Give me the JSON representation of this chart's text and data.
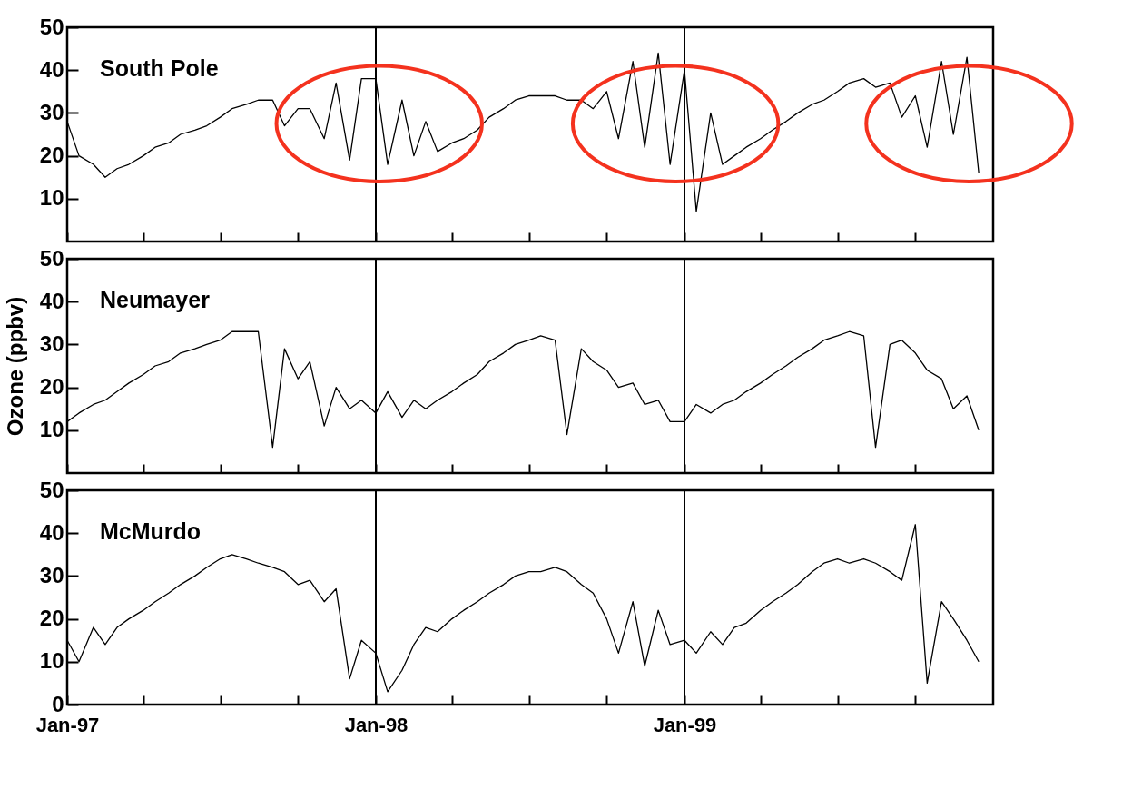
{
  "chart_data": [
    {
      "type": "line",
      "title": "South Pole",
      "xlim": [
        "1997-01-01",
        "2000-01-01"
      ],
      "ylim": [
        0,
        50
      ],
      "yticks": [
        10,
        20,
        30,
        40,
        50
      ],
      "tick_labels": "y",
      "xticks": [
        {
          "value": "1997-01-01",
          "label": null
        },
        {
          "value": "1997-04-01",
          "label": null
        },
        {
          "value": "1997-07-01",
          "label": null
        },
        {
          "value": "1997-10-01",
          "label": null
        },
        {
          "value": "1998-01-01",
          "label": null
        },
        {
          "value": "1998-04-01",
          "label": null
        },
        {
          "value": "1998-07-01",
          "label": null
        },
        {
          "value": "1998-10-01",
          "label": null
        },
        {
          "value": "1999-01-01",
          "label": null
        },
        {
          "value": "1999-04-01",
          "label": null
        },
        {
          "value": "1999-07-01",
          "label": null
        },
        {
          "value": "1999-10-01",
          "label": null
        }
      ],
      "ref_lines": [
        {
          "axis": "x",
          "value": "1998-01-01"
        },
        {
          "axis": "x",
          "value": "1999-01-01"
        }
      ],
      "x": [
        "1997-01-01",
        "1997-01-15",
        "1997-02-01",
        "1997-02-15",
        "1997-03-01",
        "1997-03-15",
        "1997-04-01",
        "1997-04-15",
        "1997-05-01",
        "1997-05-15",
        "1997-06-01",
        "1997-06-15",
        "1997-07-01",
        "1997-07-15",
        "1997-08-01",
        "1997-08-15",
        "1997-09-01",
        "1997-09-15",
        "1997-10-01",
        "1997-10-15",
        "1997-11-01",
        "1997-11-15",
        "1997-12-01",
        "1997-12-15",
        "1998-01-01",
        "1998-01-15",
        "1998-02-01",
        "1998-02-15",
        "1998-03-01",
        "1998-03-15",
        "1998-04-01",
        "1998-04-15",
        "1998-05-01",
        "1998-05-15",
        "1998-06-01",
        "1998-06-15",
        "1998-07-01",
        "1998-07-15",
        "1998-08-01",
        "1998-08-15",
        "1998-09-01",
        "1998-09-15",
        "1998-10-01",
        "1998-10-15",
        "1998-11-01",
        "1998-11-15",
        "1998-12-01",
        "1998-12-15",
        "1999-01-01",
        "1999-01-15",
        "1999-02-01",
        "1999-02-15",
        "1999-03-01",
        "1999-03-15",
        "1999-04-01",
        "1999-04-15",
        "1999-05-01",
        "1999-05-15",
        "1999-06-01",
        "1999-06-15",
        "1999-07-01",
        "1999-07-15",
        "1999-08-01",
        "1999-08-15",
        "1999-09-01",
        "1999-09-15",
        "1999-10-01",
        "1999-10-15",
        "1999-11-01",
        "1999-11-15",
        "1999-12-01",
        "1999-12-15"
      ],
      "series": [
        {
          "color": "#000000",
          "values": [
            28,
            20,
            18,
            15,
            17,
            18,
            20,
            22,
            23,
            25,
            26,
            27,
            29,
            31,
            32,
            33,
            33,
            27,
            31,
            31,
            24,
            37,
            19,
            38,
            38,
            18,
            33,
            20,
            28,
            21,
            23,
            24,
            26,
            29,
            31,
            33,
            34,
            34,
            34,
            33,
            33,
            31,
            35,
            24,
            42,
            22,
            44,
            18,
            40,
            7,
            30,
            18,
            20,
            22,
            24,
            26,
            28,
            30,
            32,
            33,
            35,
            37,
            38,
            36,
            37,
            29,
            34,
            22,
            42,
            25,
            43,
            16
          ]
        }
      ]
    },
    {
      "type": "line",
      "title": "Neumayer",
      "ylabel": "Ozone (ppbv)",
      "xlim": [
        "1997-01-01",
        "2000-01-01"
      ],
      "ylim": [
        0,
        50
      ],
      "yticks": [
        10,
        20,
        30,
        40,
        50
      ],
      "tick_labels": "y",
      "xticks": [
        {
          "value": "1997-01-01",
          "label": null
        },
        {
          "value": "1997-04-01",
          "label": null
        },
        {
          "value": "1997-07-01",
          "label": null
        },
        {
          "value": "1997-10-01",
          "label": null
        },
        {
          "value": "1998-01-01",
          "label": null
        },
        {
          "value": "1998-04-01",
          "label": null
        },
        {
          "value": "1998-07-01",
          "label": null
        },
        {
          "value": "1998-10-01",
          "label": null
        },
        {
          "value": "1999-01-01",
          "label": null
        },
        {
          "value": "1999-04-01",
          "label": null
        },
        {
          "value": "1999-07-01",
          "label": null
        },
        {
          "value": "1999-10-01",
          "label": null
        }
      ],
      "ref_lines": [
        {
          "axis": "x",
          "value": "1998-01-01"
        },
        {
          "axis": "x",
          "value": "1999-01-01"
        }
      ],
      "x": [
        "1997-01-01",
        "1997-01-15",
        "1997-02-01",
        "1997-02-15",
        "1997-03-01",
        "1997-03-15",
        "1997-04-01",
        "1997-04-15",
        "1997-05-01",
        "1997-05-15",
        "1997-06-01",
        "1997-06-15",
        "1997-07-01",
        "1997-07-15",
        "1997-08-01",
        "1997-08-15",
        "1997-09-01",
        "1997-09-15",
        "1997-10-01",
        "1997-10-15",
        "1997-11-01",
        "1997-11-15",
        "1997-12-01",
        "1997-12-15",
        "1998-01-01",
        "1998-01-15",
        "1998-02-01",
        "1998-02-15",
        "1998-03-01",
        "1998-03-15",
        "1998-04-01",
        "1998-04-15",
        "1998-05-01",
        "1998-05-15",
        "1998-06-01",
        "1998-06-15",
        "1998-07-01",
        "1998-07-15",
        "1998-08-01",
        "1998-08-15",
        "1998-09-01",
        "1998-09-15",
        "1998-10-01",
        "1998-10-15",
        "1998-11-01",
        "1998-11-15",
        "1998-12-01",
        "1998-12-15",
        "1999-01-01",
        "1999-01-15",
        "1999-02-01",
        "1999-02-15",
        "1999-03-01",
        "1999-03-15",
        "1999-04-01",
        "1999-04-15",
        "1999-05-01",
        "1999-05-15",
        "1999-06-01",
        "1999-06-15",
        "1999-07-01",
        "1999-07-15",
        "1999-08-01",
        "1999-08-15",
        "1999-09-01",
        "1999-09-15",
        "1999-10-01",
        "1999-10-15",
        "1999-11-01",
        "1999-11-15",
        "1999-12-01",
        "1999-12-15"
      ],
      "series": [
        {
          "color": "#000000",
          "values": [
            12,
            14,
            16,
            17,
            19,
            21,
            23,
            25,
            26,
            28,
            29,
            30,
            31,
            33,
            33,
            33,
            6,
            29,
            22,
            26,
            11,
            20,
            15,
            17,
            14,
            19,
            13,
            17,
            15,
            17,
            19,
            21,
            23,
            26,
            28,
            30,
            31,
            32,
            31,
            9,
            29,
            26,
            24,
            20,
            21,
            16,
            17,
            12,
            12,
            16,
            14,
            16,
            17,
            19,
            21,
            23,
            25,
            27,
            29,
            31,
            32,
            33,
            32,
            6,
            30,
            31,
            28,
            24,
            22,
            15,
            18,
            10
          ]
        }
      ]
    },
    {
      "type": "line",
      "title": "McMurdo",
      "xlim": [
        "1997-01-01",
        "2000-01-01"
      ],
      "ylim": [
        0,
        50
      ],
      "yticks": [
        0,
        10,
        20,
        30,
        40,
        50
      ],
      "xticks": [
        {
          "value": "1997-01-01",
          "label": "Jan-97"
        },
        {
          "value": "1997-04-01",
          "label": null
        },
        {
          "value": "1997-07-01",
          "label": null
        },
        {
          "value": "1997-10-01",
          "label": null
        },
        {
          "value": "1998-01-01",
          "label": "Jan-98"
        },
        {
          "value": "1998-04-01",
          "label": null
        },
        {
          "value": "1998-07-01",
          "label": null
        },
        {
          "value": "1998-10-01",
          "label": null
        },
        {
          "value": "1999-01-01",
          "label": "Jan-99"
        },
        {
          "value": "1999-04-01",
          "label": null
        },
        {
          "value": "1999-07-01",
          "label": null
        },
        {
          "value": "1999-10-01",
          "label": null
        }
      ],
      "ref_lines": [
        {
          "axis": "x",
          "value": "1998-01-01"
        },
        {
          "axis": "x",
          "value": "1999-01-01"
        }
      ],
      "x": [
        "1997-01-01",
        "1997-01-15",
        "1997-02-01",
        "1997-02-15",
        "1997-03-01",
        "1997-03-15",
        "1997-04-01",
        "1997-04-15",
        "1997-05-01",
        "1997-05-15",
        "1997-06-01",
        "1997-06-15",
        "1997-07-01",
        "1997-07-15",
        "1997-08-01",
        "1997-08-15",
        "1997-09-01",
        "1997-09-15",
        "1997-10-01",
        "1997-10-15",
        "1997-11-01",
        "1997-11-15",
        "1997-12-01",
        "1997-12-15",
        "1998-01-01",
        "1998-01-15",
        "1998-02-01",
        "1998-02-15",
        "1998-03-01",
        "1998-03-15",
        "1998-04-01",
        "1998-04-15",
        "1998-05-01",
        "1998-05-15",
        "1998-06-01",
        "1998-06-15",
        "1998-07-01",
        "1998-07-15",
        "1998-08-01",
        "1998-08-15",
        "1998-09-01",
        "1998-09-15",
        "1998-10-01",
        "1998-10-15",
        "1998-11-01",
        "1998-11-15",
        "1998-12-01",
        "1998-12-15",
        "1999-01-01",
        "1999-01-15",
        "1999-02-01",
        "1999-02-15",
        "1999-03-01",
        "1999-03-15",
        "1999-04-01",
        "1999-04-15",
        "1999-05-01",
        "1999-05-15",
        "1999-06-01",
        "1999-06-15",
        "1999-07-01",
        "1999-07-15",
        "1999-08-01",
        "1999-08-15",
        "1999-09-01",
        "1999-09-15",
        "1999-10-01",
        "1999-10-15",
        "1999-11-01",
        "1999-11-15",
        "1999-12-01",
        "1999-12-15"
      ],
      "series": [
        {
          "color": "#000000",
          "values": [
            15,
            10,
            18,
            14,
            18,
            20,
            22,
            24,
            26,
            28,
            30,
            32,
            34,
            35,
            34,
            33,
            32,
            31,
            28,
            29,
            24,
            27,
            6,
            15,
            12,
            3,
            8,
            14,
            18,
            17,
            20,
            22,
            24,
            26,
            28,
            30,
            31,
            31,
            32,
            31,
            28,
            26,
            20,
            12,
            24,
            9,
            22,
            14,
            15,
            12,
            17,
            14,
            18,
            19,
            22,
            24,
            26,
            28,
            31,
            33,
            34,
            33,
            34,
            33,
            31,
            29,
            42,
            5,
            24,
            20,
            15,
            10
          ]
        }
      ]
    }
  ]
}
